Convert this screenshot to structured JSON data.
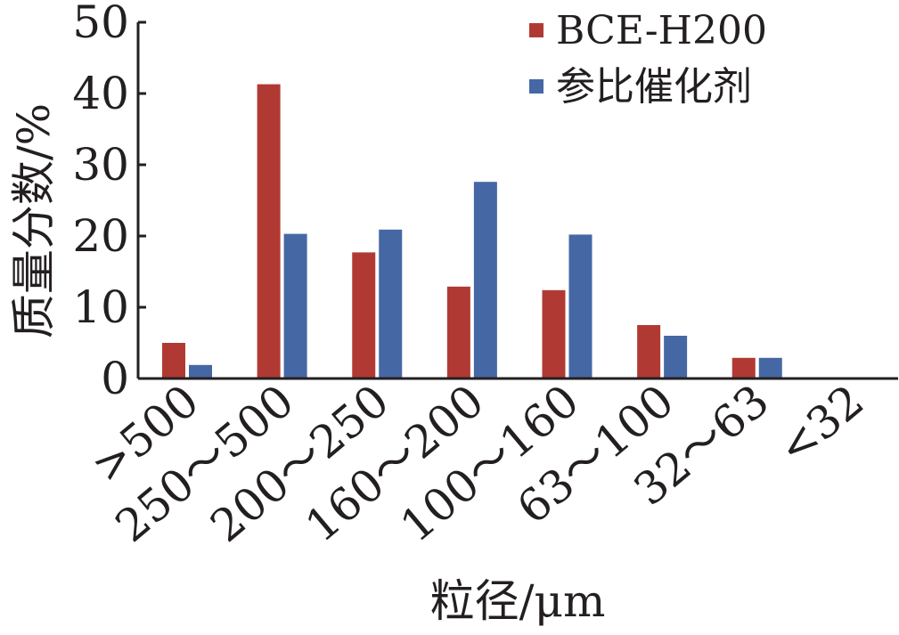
{
  "chart_data": {
    "type": "bar",
    "categories": [
      ">500",
      "250～500",
      "200～250",
      "160～200",
      "100～160",
      "63～100",
      "32～63",
      "<32"
    ],
    "series": [
      {
        "name": "BCE-H200",
        "color": "#b03a33",
        "values": [
          5.0,
          41.3,
          17.7,
          12.9,
          12.4,
          7.5,
          2.9,
          0
        ]
      },
      {
        "name": "参比催化剂",
        "color": "#4568a4",
        "values": [
          1.9,
          20.3,
          20.9,
          27.6,
          20.2,
          6.0,
          2.9,
          0
        ]
      }
    ],
    "xlabel": "粒径/μm",
    "ylabel": "质量分数/%",
    "ylim": [
      0,
      50
    ],
    "yticks": [
      "0",
      "10",
      "20",
      "30",
      "40",
      "50"
    ],
    "grid": false,
    "legend_position": "top-right"
  }
}
